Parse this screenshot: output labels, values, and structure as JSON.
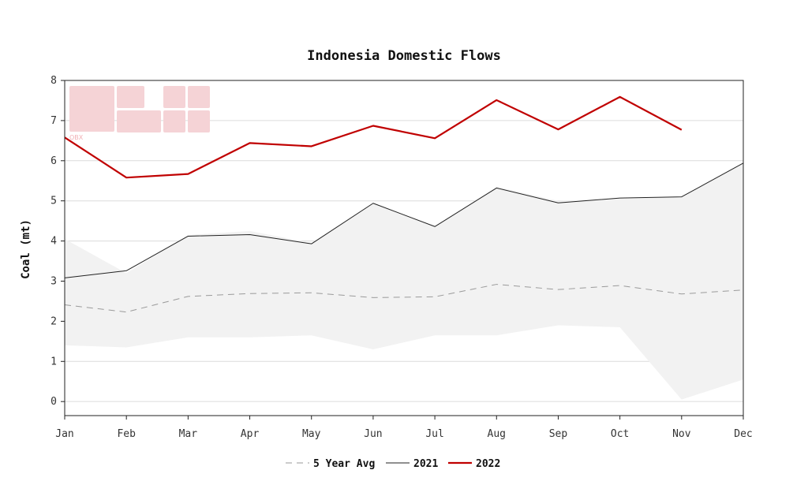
{
  "chart_data": {
    "type": "line",
    "title": "Indonesia Domestic Flows",
    "xlabel": "",
    "ylabel": "Coal (mt)",
    "categories": [
      "Jan",
      "Feb",
      "Mar",
      "Apr",
      "May",
      "Jun",
      "Jul",
      "Aug",
      "Sep",
      "Oct",
      "Nov",
      "Dec"
    ],
    "ylim": [
      -0.35,
      8
    ],
    "yticks": [
      0,
      1,
      2,
      3,
      4,
      5,
      6,
      7,
      8
    ],
    "grid": "horizontal",
    "range_band": {
      "name": "5 year range",
      "min": [
        1.4,
        1.35,
        1.6,
        1.6,
        1.65,
        1.3,
        1.65,
        1.65,
        1.9,
        1.85,
        0.05,
        0.55
      ],
      "max": [
        4.05,
        3.2,
        4.15,
        4.25,
        3.95,
        4.95,
        4.35,
        5.35,
        5.0,
        5.05,
        5.1,
        5.95
      ],
      "color": "#f2f2f2"
    },
    "series": [
      {
        "name": "5 Year Avg",
        "style": "dashed",
        "color": "#9a9a9a",
        "values": [
          2.41,
          2.23,
          2.62,
          2.69,
          2.71,
          2.59,
          2.61,
          2.92,
          2.79,
          2.89,
          2.68,
          2.78
        ]
      },
      {
        "name": "2021",
        "style": "solid",
        "color": "#222222",
        "values": [
          3.08,
          3.26,
          4.12,
          4.16,
          3.93,
          4.94,
          4.36,
          5.32,
          4.95,
          5.07,
          5.1,
          5.94
        ]
      },
      {
        "name": "2022",
        "style": "solid-thick",
        "color": "#c00000",
        "values": [
          6.58,
          5.58,
          5.67,
          6.44,
          6.36,
          6.87,
          6.56,
          7.51,
          6.78,
          7.59,
          6.77,
          null
        ]
      }
    ],
    "legend_placement": "bottom-center"
  },
  "watermark": {
    "text": "OBX",
    "color": "#f5d3d6"
  }
}
